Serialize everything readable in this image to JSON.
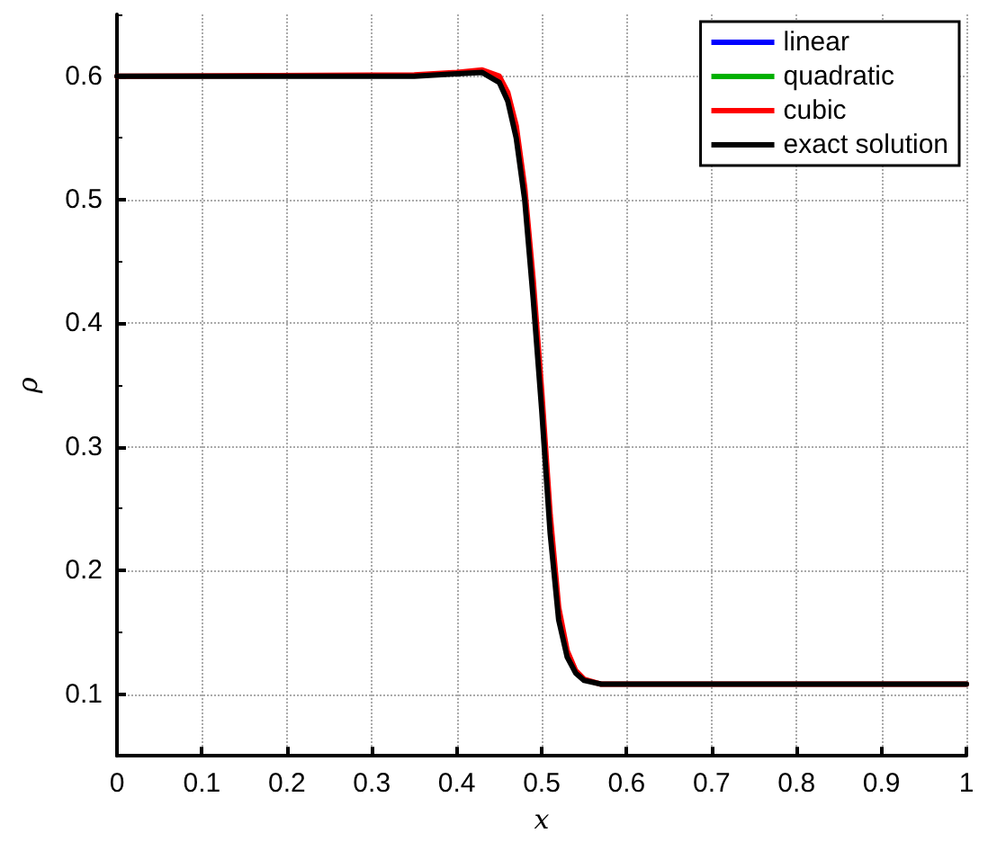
{
  "chart_data": {
    "type": "line",
    "xlabel": "x",
    "ylabel": "ρ",
    "xlim": [
      0,
      1
    ],
    "xticks": [
      0,
      0.1,
      0.2,
      0.3,
      0.4,
      0.5,
      0.6,
      0.7,
      0.8,
      0.9,
      1
    ],
    "ylim": [
      0.05,
      0.65
    ],
    "yticks": [
      0.1,
      0.2,
      0.3,
      0.4,
      0.5,
      0.6
    ],
    "grid": true,
    "legend": "top right",
    "marker": "none",
    "line_style": "solid",
    "x": [
      0,
      0.35,
      0.4,
      0.43,
      0.45,
      0.46,
      0.47,
      0.48,
      0.49,
      0.5,
      0.51,
      0.52,
      0.53,
      0.54,
      0.55,
      0.57,
      0.6,
      1
    ],
    "series": [
      {
        "name": "linear",
        "color": "#0000ff",
        "values": [
          null,
          null,
          null,
          null,
          null,
          null,
          null,
          null,
          null,
          null,
          null,
          null,
          null,
          null,
          null,
          null,
          null,
          null
        ]
      },
      {
        "name": "quadratic",
        "color": "#00b000",
        "values": [
          null,
          null,
          null,
          null,
          null,
          null,
          null,
          null,
          null,
          null,
          null,
          null,
          null,
          null,
          null,
          null,
          null,
          null
        ]
      },
      {
        "name": "cubic",
        "color": "#ff0000",
        "values": [
          0.6,
          0.601,
          0.603,
          0.605,
          0.6,
          0.587,
          0.56,
          0.51,
          0.435,
          0.345,
          0.245,
          0.17,
          0.135,
          0.119,
          0.112,
          0.108,
          0.108,
          0.108
        ]
      },
      {
        "name": "exact solution",
        "color": "#000000",
        "values": [
          0.6,
          0.6,
          0.602,
          0.603,
          0.595,
          0.58,
          0.55,
          0.5,
          0.42,
          0.33,
          0.23,
          0.16,
          0.13,
          0.117,
          0.111,
          0.108,
          0.108,
          0.108
        ]
      }
    ]
  }
}
